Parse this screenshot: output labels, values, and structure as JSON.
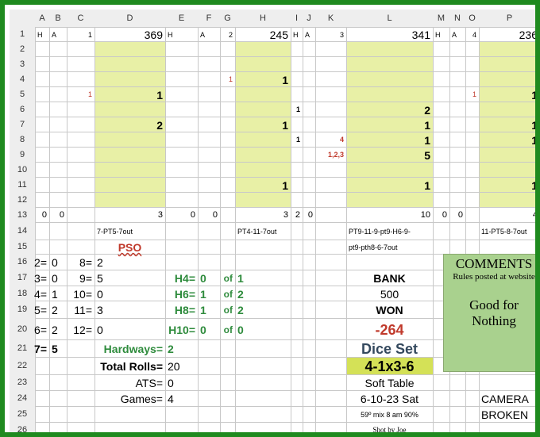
{
  "columns": [
    "A",
    "B",
    "C",
    "D",
    "E",
    "F",
    "G",
    "H",
    "I",
    "J",
    "K",
    "L",
    "M",
    "N",
    "O",
    "P"
  ],
  "rows": [
    "1",
    "2",
    "3",
    "4",
    "5",
    "6",
    "7",
    "8",
    "9",
    "10",
    "11",
    "12",
    "13",
    "14",
    "15",
    "16",
    "17",
    "18",
    "19",
    "20",
    "21",
    "22",
    "23",
    "24",
    "25",
    "26"
  ],
  "row1": {
    "a": "H",
    "b": "A",
    "c": "1",
    "d": "369",
    "e": "H",
    "f": "A",
    "g": "2",
    "h": "245",
    "i": "H",
    "j": "A",
    "k": "3",
    "l": "341",
    "m": "H",
    "n": "A",
    "o": "4",
    "p": "236"
  },
  "game1": {
    "c5": "1",
    "d5": "1",
    "d7": "2",
    "a13": "0",
    "b13": "0",
    "d13": "3",
    "d14": "7-PT5-7out",
    "d15": "PSO"
  },
  "game2": {
    "g4": "1",
    "h4": "1",
    "h7": "1",
    "h11": "1",
    "e13": "0",
    "f13": "0",
    "h13": "3",
    "h14": "PT4-11-7out"
  },
  "game3": {
    "i6": "1",
    "i8": "1",
    "k8": "4",
    "k9": "1,2,3",
    "l6": "2",
    "l7": "1",
    "l8": "1",
    "l9": "5",
    "l11": "1",
    "i13": "2",
    "j13": "0",
    "l13": "10",
    "l14": "PT9-11-9-pt9-H6-9-",
    "l15": "pt9-pth8-6-7out"
  },
  "game4": {
    "o5": "1",
    "p5": "1",
    "p7": "1",
    "p8": "1",
    "p11": "1",
    "m13": "0",
    "n13": "0",
    "p13": "4",
    "p14": "11-PT5-8-7out"
  },
  "dist": [
    {
      "a": "2=",
      "b": "0",
      "c": "8=",
      "d": "2"
    },
    {
      "a": "3=",
      "b": "0",
      "c": "9=",
      "d": "5"
    },
    {
      "a": "4=",
      "b": "1",
      "c": "10=",
      "d": "0"
    },
    {
      "a": "5=",
      "b": "2",
      "c": "11=",
      "d": "3"
    },
    {
      "a": "6=",
      "b": "2",
      "c": "12=",
      "d": "0"
    }
  ],
  "seven": {
    "a": "7=",
    "b": "5"
  },
  "hardways": [
    {
      "label": "H4=",
      "val": "0",
      "of": "of",
      "total": "1"
    },
    {
      "label": "H6=",
      "val": "1",
      "of": "of",
      "total": "2"
    },
    {
      "label": "H8=",
      "val": "1",
      "of": "of",
      "total": "2"
    },
    {
      "label": "H10=",
      "val": "0",
      "of": "of",
      "total": "0"
    }
  ],
  "hardways_total": {
    "label": "Hardways=",
    "value": "2"
  },
  "totals": {
    "rolls_label": "Total Rolls=",
    "rolls": "20",
    "ats_label": "ATS=",
    "ats": "0",
    "games_label": "Games=",
    "games": "4"
  },
  "bank": {
    "label": "BANK",
    "value": "500",
    "won_label": "WON",
    "won": "-264"
  },
  "dice": {
    "label": "Dice Set",
    "set": "4-1x3-6",
    "table": "Soft Table",
    "date": "6-10-23 Sat",
    "weather": "59º mix 8 am 90%",
    "shot_by": "Shot by Joe"
  },
  "comments": {
    "title": "COMMENTS",
    "sub": "Rules posted at website",
    "body1": "Good for",
    "body2": "Nothing"
  },
  "camera": {
    "line1": "CAMERA",
    "line2": "BROKEN"
  },
  "colors": {
    "frame": "#1f8a1f",
    "fill_yellow": "#e8f0a6",
    "comment_green": "#a9d18e",
    "green_text": "#2e8b3c",
    "red_text": "#c0392b",
    "blue_text": "#34495e",
    "dice_set_fill": "#d4e157"
  }
}
